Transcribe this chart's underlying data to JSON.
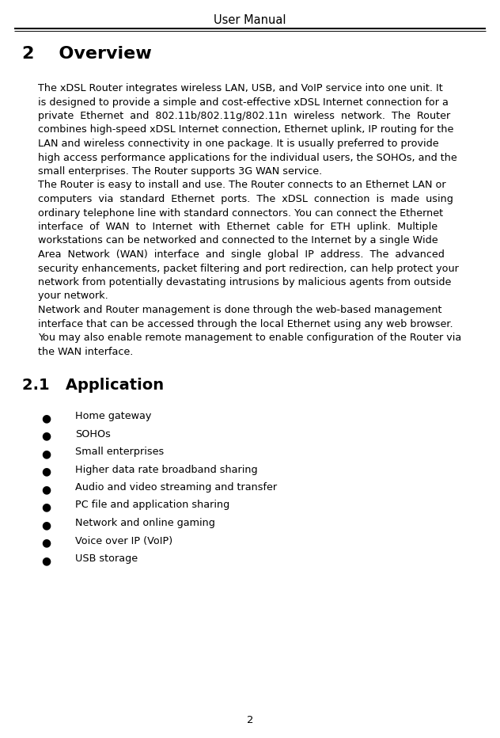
{
  "header_text": "User Manual",
  "bg_color": "#ffffff",
  "text_color": "#000000",
  "section2_title": "2    Overview",
  "section21_title": "2.1   Application",
  "p1_lines": [
    "The xDSL Router integrates wireless LAN, USB, and VoIP service into one unit. It",
    "is designed to provide a simple and cost-effective xDSL Internet connection for a",
    "private  Ethernet  and  802.11b/802.11g/802.11n  wireless  network.  The  Router",
    "combines high-speed xDSL Internet connection, Ethernet uplink, IP routing for the",
    "LAN and wireless connectivity in one package. It is usually preferred to provide",
    "high access performance applications for the individual users, the SOHOs, and the",
    "small enterprises. The Router supports 3G WAN service."
  ],
  "p2_lines": [
    "The Router is easy to install and use. The Router connects to an Ethernet LAN or",
    "computers  via  standard  Ethernet  ports.  The  xDSL  connection  is  made  using",
    "ordinary telephone line with standard connectors. You can connect the Ethernet",
    "interface  of  WAN  to  Internet  with  Ethernet  cable  for  ETH  uplink.  Multiple",
    "workstations can be networked and connected to the Internet by a single Wide",
    "Area  Network  (WAN)  interface  and  single  global  IP  address.  The  advanced",
    "security enhancements, packet filtering and port redirection, can help protect your",
    "network from potentially devastating intrusions by malicious agents from outside",
    "your network."
  ],
  "p3_lines": [
    "Network and Router management is done through the web-based management",
    "interface that can be accessed through the local Ethernet using any web browser.",
    "You may also enable remote management to enable configuration of the Router via",
    "the WAN interface."
  ],
  "bullet_items": [
    "Home gateway",
    "SOHOs",
    "Small enterprises",
    "Higher data rate broadband sharing",
    "Audio and video streaming and transfer",
    "PC file and application sharing",
    "Network and online gaming",
    "Voice over IP (VoIP)",
    "USB storage"
  ],
  "footer_text": "2",
  "figw": 6.32,
  "figh": 9.32,
  "dpi": 100,
  "header_fontsize": 10.5,
  "section_fontsize": 16,
  "subsection_fontsize": 14,
  "body_fontsize": 9.2,
  "bullet_fontsize": 9.2,
  "footer_fontsize": 9.5
}
